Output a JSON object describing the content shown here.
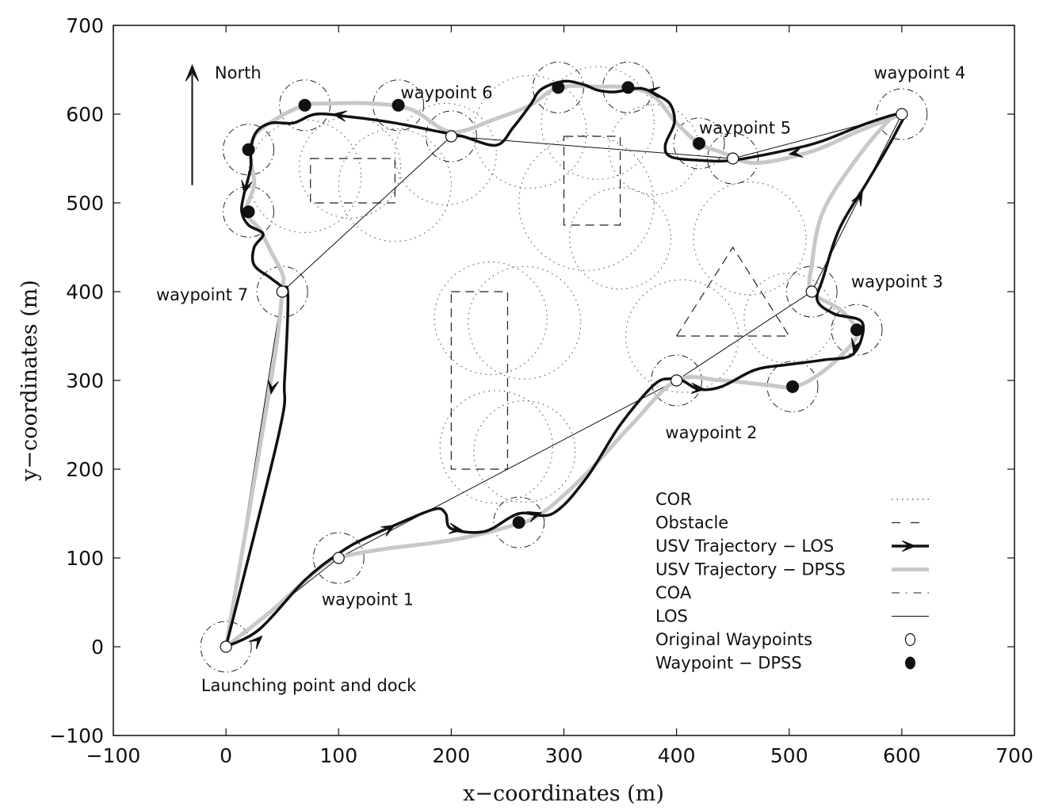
{
  "chart_data": {
    "type": "line",
    "xlabel": "x−coordinates (m)",
    "ylabel": "y−coordinates (m)",
    "xlim": [
      -100,
      700
    ],
    "ylim": [
      -100,
      700
    ],
    "xticks": [
      -100,
      0,
      100,
      200,
      300,
      400,
      500,
      600,
      700
    ],
    "yticks": [
      -100,
      0,
      100,
      200,
      300,
      400,
      500,
      600,
      700
    ],
    "xtick_labels": [
      "−100",
      "0",
      "100",
      "200",
      "300",
      "400",
      "500",
      "600",
      "700"
    ],
    "ytick_labels": [
      "−100",
      "0",
      "100",
      "200",
      "300",
      "400",
      "500",
      "600",
      "700"
    ],
    "grid": false,
    "legend_position": "bottom-right",
    "legend": [
      {
        "label": "COR",
        "style": "dotted"
      },
      {
        "label": "Obstacle",
        "style": "dashed"
      },
      {
        "label": "USV Trajectory − LOS",
        "style": "thick-black-arrow"
      },
      {
        "label": "USV Trajectory − DPSS",
        "style": "thick-gray"
      },
      {
        "label": "COA",
        "style": "dash-dot"
      },
      {
        "label": "LOS",
        "style": "thin-solid"
      },
      {
        "label": "Original Waypoints",
        "style": "open-circle"
      },
      {
        "label": "Waypoint − DPSS",
        "style": "filled-circle"
      }
    ],
    "annotations": [
      {
        "text": "North",
        "x": -10,
        "y": 640
      },
      {
        "text": "waypoint 6",
        "x": 155,
        "y": 618
      },
      {
        "text": "waypoint 4",
        "x": 575,
        "y": 640
      },
      {
        "text": "waypoint 5",
        "x": 420,
        "y": 578
      },
      {
        "text": "waypoint 7",
        "x": -62,
        "y": 390
      },
      {
        "text": "waypoint 3",
        "x": 555,
        "y": 405
      },
      {
        "text": "waypoint 2",
        "x": 390,
        "y": 235
      },
      {
        "text": "waypoint 1",
        "x": 85,
        "y": 47
      },
      {
        "text": "Launching point and dock",
        "x": -22,
        "y": -50
      }
    ],
    "original_waypoints": {
      "x": [
        0,
        100,
        400,
        520,
        600,
        450,
        200,
        50
      ],
      "y": [
        0,
        100,
        300,
        400,
        600,
        550,
        575,
        400
      ]
    },
    "dpss_waypoints": {
      "x": [
        260,
        503,
        560,
        420,
        357,
        295,
        153,
        70,
        20,
        20
      ],
      "y": [
        140,
        293,
        357,
        567,
        630,
        630,
        610,
        610,
        560,
        490
      ]
    },
    "los_path": {
      "x": [
        0,
        100,
        400,
        520,
        600,
        450,
        200,
        50,
        0
      ],
      "y": [
        0,
        100,
        300,
        400,
        600,
        550,
        575,
        400,
        0
      ]
    },
    "los_trajectory": {
      "x": [
        0,
        30,
        70,
        100,
        120,
        150,
        185,
        195,
        200,
        230,
        260,
        290,
        320,
        350,
        380,
        395,
        405,
        420,
        440,
        470,
        500,
        530,
        557,
        565,
        540,
        525,
        530,
        545,
        570,
        595,
        600,
        570,
        530,
        500,
        450,
        420,
        395,
        390,
        398,
        395,
        385,
        368,
        345,
        330,
        318,
        300,
        280,
        270,
        255,
        240,
        210,
        190,
        150,
        110,
        80,
        60,
        40,
        27,
        22,
        22,
        16,
        14,
        20,
        33,
        25,
        25,
        40,
        50,
        55,
        52,
        47,
        0
      ],
      "y": [
        0,
        20,
        75,
        105,
        120,
        137,
        155,
        150,
        133,
        130,
        150,
        150,
        190,
        250,
        295,
        302,
        300,
        290,
        293,
        312,
        318,
        323,
        330,
        365,
        375,
        390,
        415,
        472,
        525,
        580,
        600,
        590,
        570,
        560,
        548,
        548,
        552,
        565,
        590,
        610,
        620,
        629,
        625,
        627,
        633,
        637,
        628,
        610,
        585,
        565,
        575,
        580,
        590,
        597,
        600,
        590,
        590,
        580,
        560,
        540,
        510,
        490,
        475,
        465,
        450,
        430,
        415,
        405,
        395,
        300,
        240,
        0
      ]
    },
    "dpss_trajectory": {
      "x": [
        0,
        40,
        80,
        100,
        140,
        200,
        250,
        280,
        320,
        360,
        400,
        440,
        480,
        505,
        530,
        555,
        560,
        545,
        520,
        520,
        530,
        560,
        590,
        600,
        560,
        520,
        470,
        440,
        420,
        400,
        380,
        357,
        330,
        295,
        270,
        240,
        200,
        165,
        130,
        90,
        70,
        45,
        25,
        22,
        25,
        18,
        30,
        40,
        50,
        50,
        40,
        0
      ],
      "y": [
        0,
        40,
        85,
        100,
        110,
        120,
        135,
        150,
        195,
        250,
        300,
        300,
        295,
        293,
        310,
        340,
        357,
        380,
        400,
        430,
        490,
        550,
        595,
        600,
        580,
        558,
        545,
        557,
        567,
        590,
        620,
        630,
        631,
        630,
        610,
        595,
        580,
        605,
        612,
        612,
        610,
        595,
        575,
        550,
        520,
        490,
        470,
        445,
        420,
        400,
        300,
        0
      ]
    },
    "los_arrows": [
      {
        "from": [
          28,
          7
        ],
        "to": [
          32,
          12
        ]
      },
      {
        "from": [
          140,
          130
        ],
        "to": [
          150,
          137
        ]
      },
      {
        "from": [
          200,
          133
        ],
        "to": [
          210,
          131
        ]
      },
      {
        "from": [
          270,
          147
        ],
        "to": [
          280,
          151
        ]
      },
      {
        "from": [
          415,
          291
        ],
        "to": [
          425,
          290
        ]
      },
      {
        "from": [
          560,
          347
        ],
        "to": [
          557,
          332
        ]
      },
      {
        "from": [
          560,
          500
        ],
        "to": [
          565,
          512
        ]
      },
      {
        "from": [
          510,
          557
        ],
        "to": [
          500,
          555
        ]
      },
      {
        "from": [
          383,
          625
        ],
        "to": [
          373,
          627
        ]
      },
      {
        "from": [
          105,
          598
        ],
        "to": [
          95,
          600
        ]
      },
      {
        "from": [
          18,
          522
        ],
        "to": [
          16,
          510
        ]
      },
      {
        "from": [
          42,
          300
        ],
        "to": [
          40,
          285
        ]
      }
    ],
    "cor_circles": [
      {
        "cx": 70,
        "cy": 530,
        "r": 50
      },
      {
        "cx": 110,
        "cy": 540,
        "r": 45
      },
      {
        "cx": 150,
        "cy": 520,
        "r": 50
      },
      {
        "cx": 195,
        "cy": 555,
        "r": 45
      },
      {
        "cx": 270,
        "cy": 580,
        "r": 50
      },
      {
        "cx": 330,
        "cy": 590,
        "r": 50
      },
      {
        "cx": 380,
        "cy": 560,
        "r": 40
      },
      {
        "cx": 320,
        "cy": 500,
        "r": 60
      },
      {
        "cx": 350,
        "cy": 460,
        "r": 45
      },
      {
        "cx": 235,
        "cy": 370,
        "r": 50
      },
      {
        "cx": 265,
        "cy": 365,
        "r": 50
      },
      {
        "cx": 240,
        "cy": 225,
        "r": 50
      },
      {
        "cx": 265,
        "cy": 220,
        "r": 45
      },
      {
        "cx": 465,
        "cy": 460,
        "r": 50
      },
      {
        "cx": 405,
        "cy": 350,
        "r": 50
      },
      {
        "cx": 500,
        "cy": 370,
        "r": 40
      }
    ],
    "obstacles": [
      {
        "shape": "rect",
        "x": [
          75,
          150
        ],
        "y": [
          500,
          550
        ]
      },
      {
        "shape": "rect",
        "x": [
          300,
          350
        ],
        "y": [
          475,
          575
        ]
      },
      {
        "shape": "rect",
        "x": [
          200,
          250
        ],
        "y": [
          200,
          400
        ]
      },
      {
        "shape": "triangle",
        "points": [
          [
            400,
            350
          ],
          [
            450,
            450
          ],
          [
            500,
            350
          ]
        ]
      }
    ],
    "north_arrow": {
      "from": [
        -30,
        520
      ],
      "to": [
        -30,
        650
      ]
    }
  }
}
